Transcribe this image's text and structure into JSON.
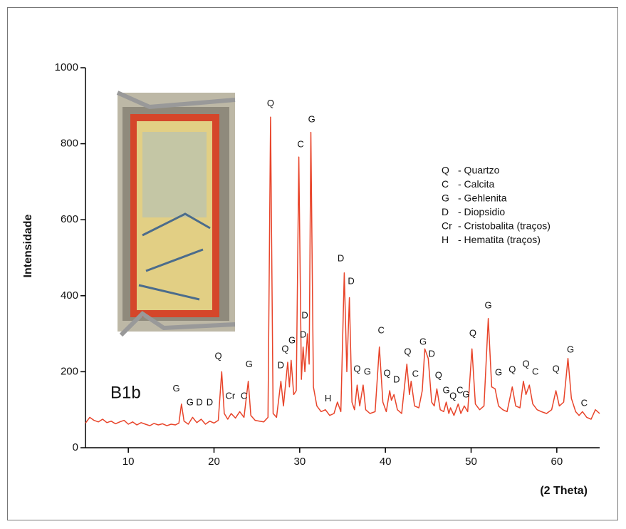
{
  "chart_data": {
    "type": "line",
    "xlabel": "(2 Theta)",
    "ylabel": "Intensidade",
    "sample_label": "B1b",
    "xlim": [
      5,
      65
    ],
    "ylim": [
      0,
      1000
    ],
    "xticks": [
      10,
      20,
      30,
      40,
      50,
      60
    ],
    "yticks": [
      0,
      200,
      400,
      600,
      800,
      1000
    ],
    "x": [
      5.0,
      5.5,
      6.0,
      6.5,
      7.0,
      7.5,
      8.0,
      8.5,
      9.0,
      9.5,
      10.0,
      10.5,
      11.0,
      11.5,
      12.0,
      12.5,
      13.0,
      13.5,
      14.0,
      14.5,
      15.0,
      15.5,
      15.9,
      16.2,
      16.5,
      17.0,
      17.5,
      18.0,
      18.5,
      19.0,
      19.5,
      20.0,
      20.5,
      20.9,
      21.2,
      21.6,
      22.0,
      22.5,
      23.0,
      23.5,
      24.0,
      24.3,
      24.8,
      25.3,
      25.8,
      26.3,
      26.6,
      26.9,
      27.3,
      27.8,
      28.1,
      28.6,
      28.8,
      29.0,
      29.3,
      29.6,
      29.9,
      30.2,
      30.4,
      30.6,
      30.9,
      31.1,
      31.3,
      31.6,
      32.0,
      32.5,
      33.0,
      33.5,
      34.0,
      34.4,
      34.8,
      35.2,
      35.5,
      35.8,
      36.1,
      36.4,
      36.7,
      37.0,
      37.4,
      37.7,
      38.2,
      38.8,
      39.3,
      39.7,
      40.1,
      40.5,
      40.7,
      41.0,
      41.4,
      41.9,
      42.5,
      42.8,
      43.0,
      43.4,
      43.9,
      44.3,
      44.6,
      45.0,
      45.4,
      45.7,
      46.0,
      46.4,
      46.8,
      47.1,
      47.4,
      47.6,
      48.0,
      48.5,
      48.8,
      49.2,
      49.6,
      50.1,
      50.5,
      51.0,
      51.5,
      52.0,
      52.4,
      52.8,
      53.2,
      53.7,
      54.2,
      54.8,
      55.2,
      55.7,
      56.1,
      56.4,
      56.8,
      57.2,
      57.7,
      58.2,
      58.8,
      59.4,
      59.9,
      60.3,
      60.8,
      61.3,
      61.7,
      62.2,
      62.6,
      63.0,
      63.5,
      64.0,
      64.5,
      65.0
    ],
    "series": [
      {
        "color": "#e8442a",
        "values": [
          65,
          80,
          72,
          68,
          75,
          66,
          70,
          63,
          68,
          72,
          62,
          68,
          60,
          66,
          62,
          58,
          64,
          60,
          63,
          58,
          62,
          60,
          65,
          115,
          70,
          62,
          80,
          66,
          75,
          62,
          70,
          65,
          72,
          200,
          90,
          75,
          90,
          78,
          95,
          80,
          175,
          85,
          72,
          70,
          68,
          80,
          870,
          90,
          80,
          175,
          110,
          225,
          160,
          230,
          140,
          150,
          765,
          180,
          265,
          200,
          300,
          220,
          830,
          160,
          110,
          95,
          100,
          85,
          90,
          120,
          95,
          460,
          200,
          395,
          120,
          100,
          165,
          110,
          165,
          100,
          90,
          95,
          265,
          120,
          95,
          150,
          125,
          140,
          100,
          90,
          220,
          140,
          175,
          110,
          105,
          150,
          260,
          235,
          120,
          110,
          155,
          100,
          95,
          120,
          90,
          105,
          85,
          115,
          90,
          110,
          95,
          260,
          115,
          100,
          110,
          340,
          160,
          155,
          110,
          100,
          95,
          160,
          110,
          105,
          175,
          140,
          165,
          115,
          100,
          95,
          90,
          100,
          150,
          110,
          120,
          235,
          130,
          95,
          85,
          95,
          80,
          75,
          100,
          90
        ]
      }
    ],
    "annotations": [
      {
        "text": "G",
        "x": 15.6,
        "y": 155
      },
      {
        "text": "G",
        "x": 17.2,
        "y": 118
      },
      {
        "text": "D",
        "x": 18.3,
        "y": 118
      },
      {
        "text": "D",
        "x": 19.5,
        "y": 118
      },
      {
        "text": "Q",
        "x": 20.5,
        "y": 240
      },
      {
        "text": "Cr",
        "x": 21.9,
        "y": 135
      },
      {
        "text": "C",
        "x": 23.5,
        "y": 135
      },
      {
        "text": "G",
        "x": 24.1,
        "y": 218
      },
      {
        "text": "Q",
        "x": 26.6,
        "y": 905
      },
      {
        "text": "D",
        "x": 27.8,
        "y": 216
      },
      {
        "text": "Q",
        "x": 28.3,
        "y": 259
      },
      {
        "text": "G",
        "x": 29.1,
        "y": 281
      },
      {
        "text": "C",
        "x": 30.1,
        "y": 797
      },
      {
        "text": "D",
        "x": 30.6,
        "y": 347
      },
      {
        "text": "D",
        "x": 30.4,
        "y": 296
      },
      {
        "text": "G",
        "x": 31.4,
        "y": 863
      },
      {
        "text": "H",
        "x": 33.3,
        "y": 128
      },
      {
        "text": "D",
        "x": 34.8,
        "y": 497
      },
      {
        "text": "D",
        "x": 36.0,
        "y": 437
      },
      {
        "text": "Q",
        "x": 36.7,
        "y": 206
      },
      {
        "text": "G",
        "x": 37.9,
        "y": 199
      },
      {
        "text": "C",
        "x": 39.5,
        "y": 308
      },
      {
        "text": "Q",
        "x": 40.2,
        "y": 195
      },
      {
        "text": "D",
        "x": 41.3,
        "y": 178
      },
      {
        "text": "Q",
        "x": 42.6,
        "y": 251
      },
      {
        "text": "C",
        "x": 43.5,
        "y": 193
      },
      {
        "text": "G",
        "x": 44.4,
        "y": 278
      },
      {
        "text": "D",
        "x": 45.4,
        "y": 246
      },
      {
        "text": "Q",
        "x": 46.2,
        "y": 189
      },
      {
        "text": "G",
        "x": 47.1,
        "y": 150
      },
      {
        "text": "Q",
        "x": 47.9,
        "y": 135
      },
      {
        "text": "C",
        "x": 48.7,
        "y": 150
      },
      {
        "text": "G",
        "x": 49.4,
        "y": 139
      },
      {
        "text": "Q",
        "x": 50.2,
        "y": 300
      },
      {
        "text": "G",
        "x": 52.0,
        "y": 373
      },
      {
        "text": "G",
        "x": 53.2,
        "y": 197
      },
      {
        "text": "Q",
        "x": 54.8,
        "y": 204
      },
      {
        "text": "Q",
        "x": 56.4,
        "y": 219
      },
      {
        "text": "C",
        "x": 57.5,
        "y": 199
      },
      {
        "text": "Q",
        "x": 59.9,
        "y": 206
      },
      {
        "text": "G",
        "x": 61.6,
        "y": 257
      },
      {
        "text": "C",
        "x": 63.2,
        "y": 116
      }
    ],
    "legend": [
      {
        "symbol": "Q",
        "text": "- Quartzo"
      },
      {
        "symbol": "C",
        "text": "- Calcita"
      },
      {
        "symbol": "G",
        "text": "- Gehlenita"
      },
      {
        "symbol": "D",
        "text": "- Diopsidio"
      },
      {
        "symbol": "Cr",
        "text": "- Cristobalita (traços)"
      },
      {
        "symbol": "H",
        "text": "- Hematita (traços)"
      }
    ]
  }
}
